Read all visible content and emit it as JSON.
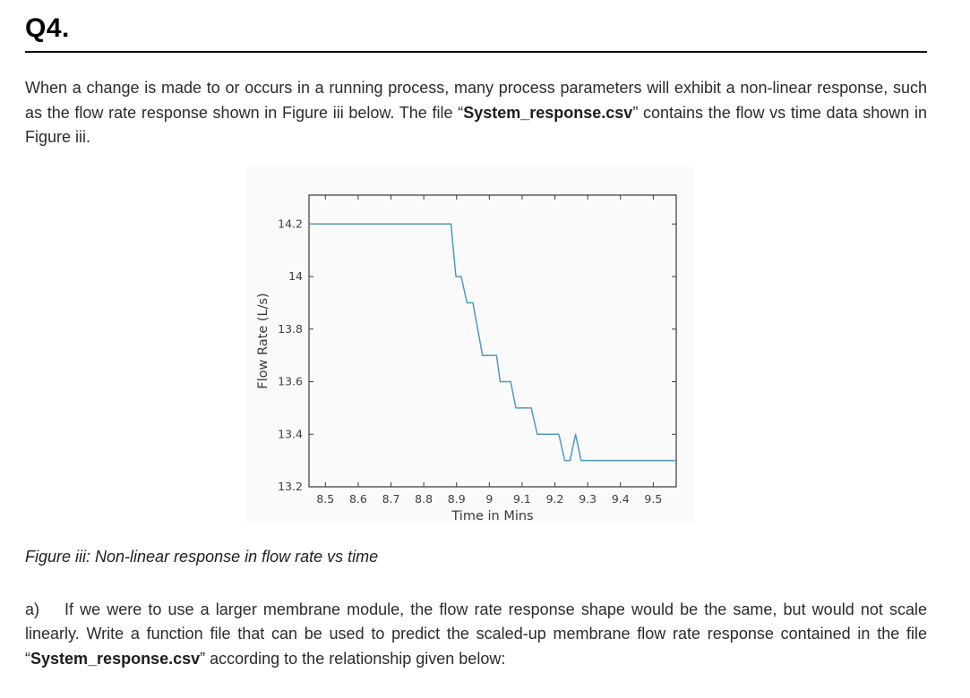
{
  "header": {
    "title": "Q4."
  },
  "intro": {
    "pre": "When a change is made to or occurs in a running process, many process parameters will exhibit a non-linear response, such as the flow rate response shown in Figure iii below. The file “",
    "file": "System_response.csv",
    "post": "” contains the flow vs time data shown in Figure iii."
  },
  "figure": {
    "caption": "Figure iii: Non-linear response in flow rate vs time"
  },
  "chart_data": {
    "type": "line",
    "title": "",
    "xlabel": "Time in Mins",
    "ylabel": "Flow Rate (L/s)",
    "xlim": [
      8.45,
      9.57
    ],
    "ylim": [
      13.2,
      14.31
    ],
    "xticks": [
      8.5,
      8.6,
      8.7,
      8.8,
      8.9,
      9,
      9.1,
      9.2,
      9.3,
      9.4,
      9.5
    ],
    "yticks": [
      13.2,
      13.4,
      13.6,
      13.8,
      14,
      14.2
    ],
    "grid": false,
    "box": true,
    "legend": "none",
    "line_color": "#4f9bbe",
    "axis_color": "#3a3a3a",
    "plot_bg": "#fafafa",
    "series": [
      {
        "name": "flow-rate-response",
        "points": [
          [
            8.45,
            14.2
          ],
          [
            8.883,
            14.2
          ],
          [
            8.898,
            14.0
          ],
          [
            8.914,
            14.0
          ],
          [
            8.932,
            13.9
          ],
          [
            8.95,
            13.9
          ],
          [
            8.979,
            13.7
          ],
          [
            9.022,
            13.7
          ],
          [
            9.033,
            13.6
          ],
          [
            9.065,
            13.6
          ],
          [
            9.081,
            13.5
          ],
          [
            9.128,
            13.5
          ],
          [
            9.146,
            13.4
          ],
          [
            9.212,
            13.4
          ],
          [
            9.23,
            13.3
          ],
          [
            9.246,
            13.3
          ],
          [
            9.263,
            13.4
          ],
          [
            9.28,
            13.3
          ],
          [
            9.57,
            13.3
          ]
        ]
      }
    ]
  },
  "part_a": {
    "label": "a)",
    "pre": "If we were to use a larger membrane module, the flow rate response shape would be the same, but would not scale linearly. Write a function file that can be used to predict the scaled-up membrane flow rate response contained in the file “",
    "file": "System_response.csv",
    "post": "” according to the relationship given below:"
  }
}
